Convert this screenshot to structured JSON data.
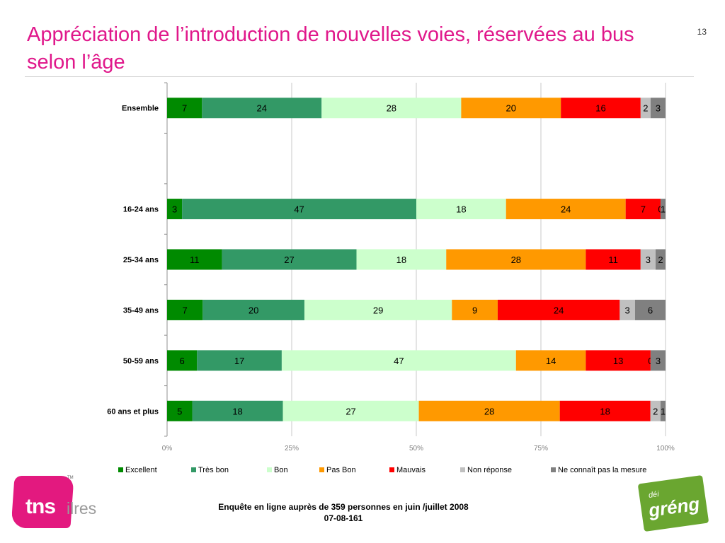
{
  "page": {
    "title": "Appréciation de l’introduction de nouvelles voies, réservées au bus selon l’âge",
    "page_number": "13",
    "footer_line1": "Enquête en ligne auprès de 359 personnes en juin /juillet 2008",
    "footer_line2": "07-08-161"
  },
  "logos": {
    "tns_main": "tns",
    "tns_suffix": "ilres",
    "tns_tm": "TM",
    "greng_small": "déi",
    "greng_main": "gréng"
  },
  "chart_data": {
    "type": "bar",
    "orientation": "horizontal",
    "stacked": true,
    "percent_stacked": true,
    "categories": [
      "Ensemble",
      "",
      "16-24 ans",
      "25-34 ans",
      "35-49 ans",
      "50-59 ans",
      "60 ans et plus"
    ],
    "series": [
      {
        "name": "Excellent",
        "color": "#008a00",
        "values": [
          7,
          null,
          3,
          11,
          7,
          6,
          5
        ]
      },
      {
        "name": "Très bon",
        "color": "#339966",
        "values": [
          24,
          null,
          47,
          27,
          20,
          17,
          18
        ]
      },
      {
        "name": "Bon",
        "color": "#ccffcc",
        "values": [
          28,
          null,
          18,
          18,
          29,
          47,
          27
        ]
      },
      {
        "name": "Pas Bon",
        "color": "#ff9900",
        "values": [
          20,
          null,
          24,
          28,
          9,
          14,
          28
        ]
      },
      {
        "name": "Mauvais",
        "color": "#ff0000",
        "values": [
          16,
          null,
          7,
          11,
          24,
          13,
          18
        ]
      },
      {
        "name": "Non réponse",
        "color": "#c0c0c0",
        "values": [
          2,
          null,
          0,
          3,
          3,
          0,
          2
        ]
      },
      {
        "name": "Ne connaît pas la mesure",
        "color": "#808080",
        "values": [
          3,
          null,
          1,
          2,
          6,
          3,
          1
        ]
      }
    ],
    "x_ticks": [
      "0%",
      "25%",
      "50%",
      "75%",
      "100%"
    ],
    "xlim": [
      0,
      100
    ],
    "grid": true,
    "legend_position": "bottom"
  }
}
